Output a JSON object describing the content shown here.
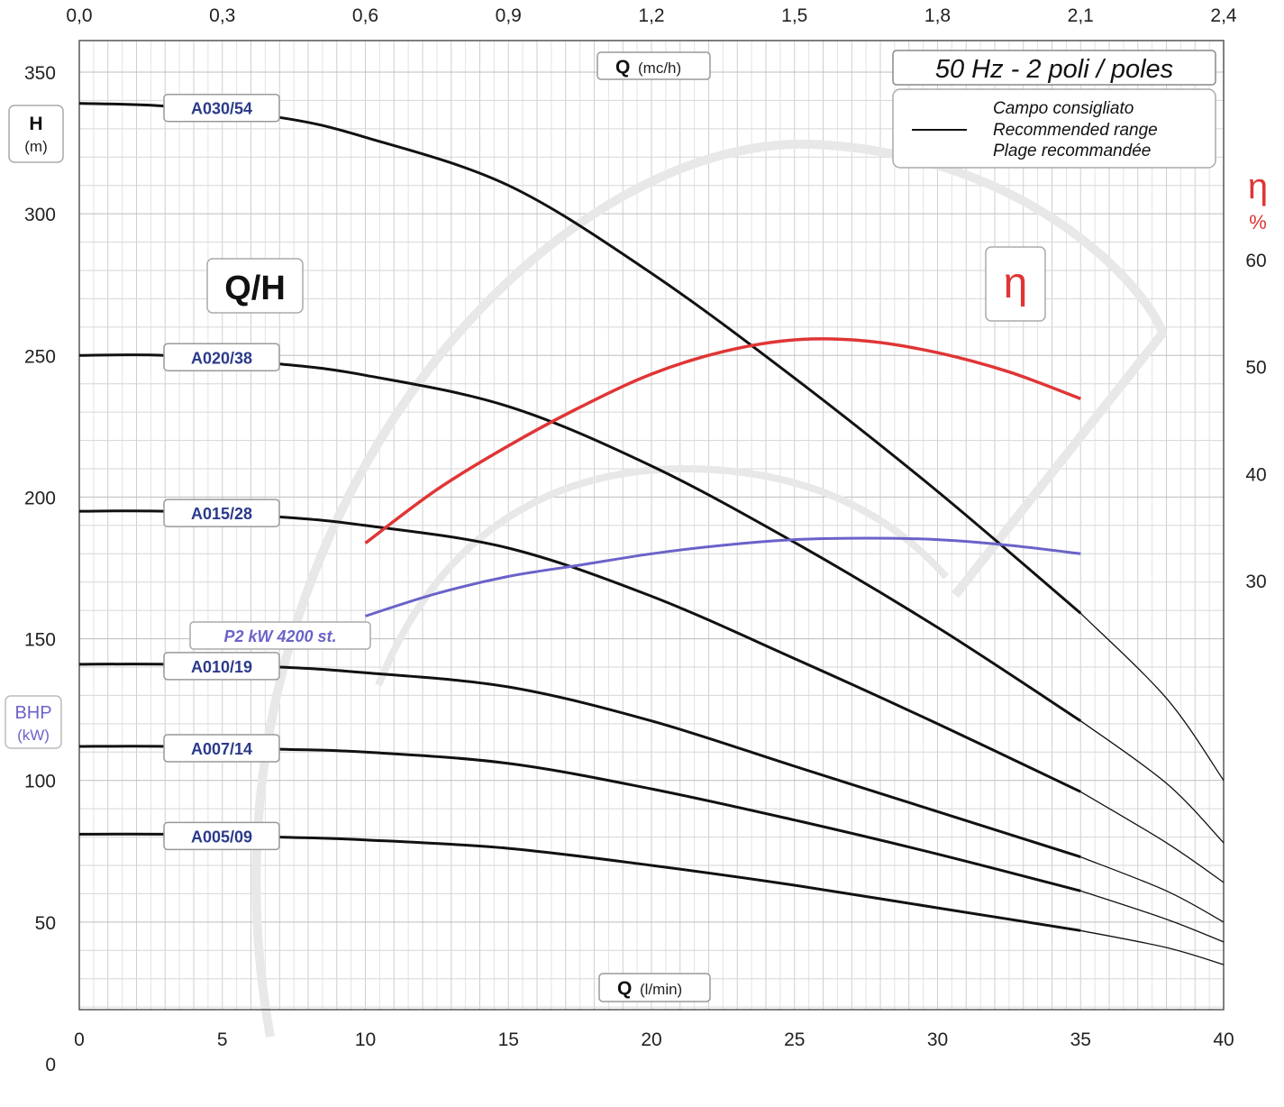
{
  "chart_data": {
    "type": "line",
    "title": "50 Hz - 2 poli / poles",
    "plot_label": "Q/H",
    "efficiency_symbol": "η",
    "x_bottom": {
      "label_bold": "Q",
      "label_unit": "(l/min)",
      "range": [
        0,
        40
      ],
      "ticks": [
        "0",
        "5",
        "10",
        "15",
        "20",
        "25",
        "30",
        "35",
        "40"
      ]
    },
    "x_top": {
      "label_bold": "Q",
      "label_unit": "(mc/h)",
      "range": [
        0,
        2.4
      ],
      "ticks": [
        "0,0",
        "0,3",
        "0,6",
        "0,9",
        "1,2",
        "1,5",
        "1,8",
        "2,1",
        "2,4"
      ]
    },
    "y_left": {
      "label_bold": "H",
      "label_unit": "(m)",
      "range": [
        0,
        350
      ],
      "ticks": [
        "0",
        "50",
        "100",
        "150",
        "200",
        "250",
        "300",
        "350"
      ]
    },
    "y_left_power": {
      "label": "BHP",
      "unit": "(kW)"
    },
    "y_right": {
      "symbol": "η",
      "unit": "%",
      "range": [
        20,
        60
      ],
      "ticks": [
        "30",
        "40",
        "50",
        "60"
      ]
    },
    "legend": {
      "placement": "top-right",
      "lines": [
        "Campo consigliato",
        "Recommended range",
        "Plage recommandée"
      ]
    },
    "colors": {
      "curve": "#111111",
      "efficiency": "#e03535",
      "power": "#6a63c8",
      "label_text": "#2b3a8a"
    },
    "series": [
      {
        "name": "A030/54",
        "x": [
          0,
          3,
          7,
          10,
          15,
          20,
          25,
          30,
          35,
          38,
          40
        ],
        "y": [
          339,
          338,
          334,
          327,
          310,
          279,
          242,
          202,
          159,
          129,
          100
        ]
      },
      {
        "name": "A020/38",
        "x": [
          0,
          3,
          7,
          10,
          15,
          20,
          25,
          30,
          35,
          38,
          40
        ],
        "y": [
          250,
          250,
          247,
          243,
          232,
          211,
          184,
          154,
          121,
          99,
          78
        ]
      },
      {
        "name": "A015/28",
        "x": [
          0,
          3,
          7,
          10,
          15,
          20,
          25,
          30,
          35,
          38,
          40
        ],
        "y": [
          195,
          195,
          193,
          190,
          182,
          165,
          143,
          120,
          96,
          78,
          64
        ]
      },
      {
        "name": "A010/19",
        "x": [
          0,
          3,
          7,
          10,
          15,
          20,
          25,
          30,
          35,
          38,
          40
        ],
        "y": [
          141,
          141,
          140,
          138,
          133,
          121,
          105,
          89,
          73,
          61,
          50
        ]
      },
      {
        "name": "A007/14",
        "x": [
          0,
          3,
          7,
          10,
          15,
          20,
          25,
          30,
          35,
          38,
          40
        ],
        "y": [
          112,
          112,
          111,
          110,
          106,
          97,
          86,
          74,
          61,
          51,
          43
        ]
      },
      {
        "name": "A005/09",
        "x": [
          0,
          3,
          7,
          10,
          15,
          20,
          25,
          30,
          35,
          38,
          40
        ],
        "y": [
          81,
          81,
          80,
          79,
          76,
          70,
          63,
          55,
          47,
          41,
          35
        ]
      }
    ],
    "efficiency": {
      "name": "η",
      "x": [
        10,
        12.5,
        15,
        17.5,
        20,
        22.5,
        25,
        27.5,
        30,
        32.5,
        35
      ],
      "y": [
        33.5,
        38.5,
        42.6,
        46.2,
        49.3,
        51.4,
        52.5,
        52.4,
        51.3,
        49.5,
        47
      ]
    },
    "power": {
      "name": "P2 kW 4200 st.",
      "x": [
        10,
        12.5,
        15,
        17.5,
        20,
        22.5,
        25,
        27.5,
        30,
        32.5,
        35
      ],
      "y": [
        158,
        166,
        172,
        176,
        180,
        183,
        185,
        185.5,
        185,
        183,
        180
      ]
    }
  }
}
